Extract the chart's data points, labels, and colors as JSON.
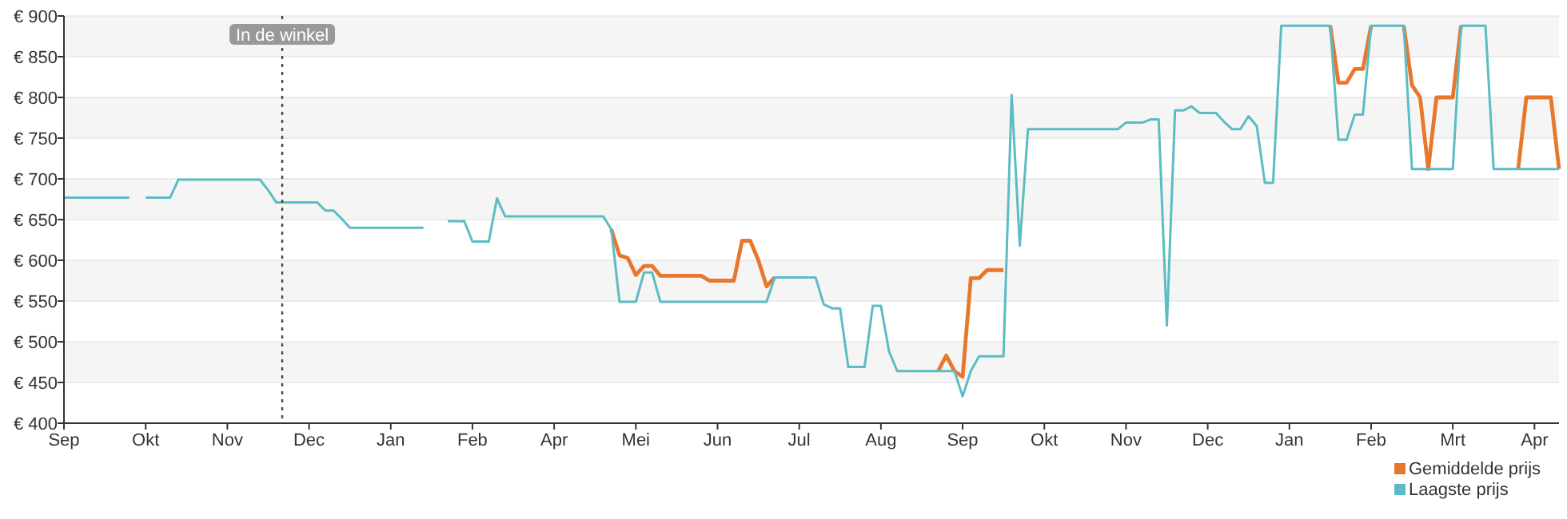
{
  "chart_data": {
    "type": "line",
    "categories": [
      "Sep",
      null,
      null,
      null,
      null,
      null,
      null,
      null,
      null,
      null,
      "Okt",
      null,
      null,
      null,
      null,
      null,
      null,
      null,
      null,
      null,
      "Nov",
      null,
      null,
      null,
      null,
      null,
      null,
      null,
      null,
      null,
      "Dec",
      null,
      null,
      null,
      null,
      null,
      null,
      null,
      null,
      null,
      "Jan",
      null,
      null,
      null,
      null,
      null,
      null,
      null,
      null,
      null,
      "Feb",
      null,
      null,
      null,
      null,
      null,
      null,
      null,
      null,
      null,
      "Apr",
      null,
      null,
      null,
      null,
      null,
      null,
      null,
      null,
      null,
      "Mei",
      null,
      null,
      null,
      null,
      null,
      null,
      null,
      null,
      null,
      "Jun",
      null,
      null,
      null,
      null,
      null,
      null,
      null,
      null,
      null,
      "Jul",
      null,
      null,
      null,
      null,
      null,
      null,
      null,
      null,
      null,
      "Aug",
      null,
      null,
      null,
      null,
      null,
      null,
      null,
      null,
      null,
      "Sep",
      null,
      null,
      null,
      null,
      null,
      null,
      null,
      null,
      null,
      "Okt",
      null,
      null,
      null,
      null,
      null,
      null,
      null,
      null,
      null,
      "Nov",
      null,
      null,
      null,
      null,
      null,
      null,
      null,
      null,
      null,
      "Dec",
      null,
      null,
      null,
      null,
      null,
      null,
      null,
      null,
      null,
      "Jan",
      null,
      null,
      null,
      null,
      null,
      null,
      null,
      null,
      null,
      "Feb",
      null,
      null,
      null,
      null,
      null,
      null,
      null,
      null,
      null,
      "Mrt",
      null,
      null,
      null,
      null,
      null,
      null,
      null,
      null,
      null,
      "Apr",
      null,
      null,
      null
    ],
    "ylim": [
      400,
      900
    ],
    "yticks": [
      {
        "value": 400,
        "label": "€ 400"
      },
      {
        "value": 450,
        "label": "€ 450"
      },
      {
        "value": 500,
        "label": "€ 500"
      },
      {
        "value": 550,
        "label": "€ 550"
      },
      {
        "value": 600,
        "label": "€ 600"
      },
      {
        "value": 650,
        "label": "€ 650"
      },
      {
        "value": 700,
        "label": "€ 700"
      },
      {
        "value": 750,
        "label": "€ 750"
      },
      {
        "value": 800,
        "label": "€ 800"
      },
      {
        "value": 850,
        "label": "€ 850"
      },
      {
        "value": 900,
        "label": "€ 900"
      }
    ],
    "grid": "y",
    "legend": "bottom right",
    "marker": "none",
    "line_style": "solid",
    "annotations": [
      "In de winkel"
    ],
    "series": [
      {
        "name": "Gemiddelde prijs",
        "color": "#e8772e",
        "values": [
          null,
          null,
          null,
          null,
          null,
          null,
          null,
          null,
          null,
          null,
          null,
          null,
          null,
          null,
          null,
          null,
          null,
          null,
          null,
          null,
          null,
          null,
          null,
          null,
          null,
          null,
          null,
          null,
          null,
          null,
          null,
          null,
          null,
          null,
          null,
          null,
          null,
          null,
          null,
          null,
          null,
          null,
          null,
          null,
          null,
          null,
          null,
          null,
          null,
          null,
          null,
          null,
          null,
          null,
          null,
          null,
          null,
          null,
          null,
          null,
          null,
          null,
          null,
          null,
          null,
          null,
          null,
          638,
          606,
          603,
          582,
          593,
          593,
          581,
          581,
          581,
          581,
          581,
          581,
          575,
          575,
          575,
          575,
          624,
          624,
          600,
          568,
          579,
          null,
          null,
          null,
          null,
          null,
          null,
          null,
          null,
          null,
          null,
          null,
          null,
          null,
          null,
          null,
          null,
          null,
          null,
          null,
          464,
          483,
          464,
          457,
          578,
          578,
          588,
          588,
          588,
          null,
          null,
          null,
          null,
          null,
          null,
          null,
          null,
          null,
          null,
          null,
          null,
          null,
          null,
          null,
          null,
          null,
          null,
          null,
          null,
          null,
          null,
          null,
          null,
          null,
          null,
          null,
          null,
          null,
          null,
          null,
          null,
          null,
          null,
          null,
          null,
          null,
          null,
          null,
          888,
          818,
          818,
          835,
          835,
          888,
          null,
          null,
          null,
          888,
          815,
          800,
          712,
          800,
          800,
          800,
          888,
          null,
          null,
          null,
          null,
          null,
          null,
          712,
          800,
          800,
          800,
          800,
          712
        ]
      },
      {
        "name": "Laagste prijs",
        "color": "#5bbcc4",
        "values": [
          677,
          677,
          677,
          677,
          677,
          677,
          677,
          677,
          677,
          null,
          677,
          677,
          677,
          677,
          699,
          699,
          699,
          699,
          699,
          699,
          699,
          699,
          699,
          699,
          699,
          686,
          671,
          671,
          671,
          671,
          671,
          671,
          661,
          661,
          651,
          640,
          640,
          640,
          640,
          640,
          640,
          640,
          640,
          640,
          640,
          null,
          null,
          648,
          648,
          648,
          623,
          623,
          623,
          676,
          654,
          654,
          654,
          654,
          654,
          654,
          654,
          654,
          654,
          654,
          654,
          654,
          654,
          638,
          549,
          549,
          549,
          585,
          585,
          549,
          549,
          549,
          549,
          549,
          549,
          549,
          549,
          549,
          549,
          549,
          549,
          549,
          549,
          579,
          579,
          579,
          579,
          579,
          579,
          546,
          541,
          541,
          469,
          469,
          469,
          544,
          544,
          488,
          464,
          464,
          464,
          464,
          464,
          464,
          464,
          464,
          433,
          464,
          482,
          482,
          482,
          482,
          803,
          618,
          761,
          761,
          761,
          761,
          761,
          761,
          761,
          761,
          761,
          761,
          761,
          761,
          769,
          769,
          769,
          773,
          773,
          520,
          784,
          784,
          789,
          781,
          781,
          781,
          770,
          761,
          761,
          777,
          765,
          695,
          695,
          888,
          888,
          888,
          888,
          888,
          888,
          888,
          748,
          748,
          779,
          779,
          888,
          888,
          888,
          888,
          888,
          712,
          712,
          712,
          712,
          712,
          712,
          888,
          888,
          888,
          888,
          712,
          712,
          712,
          712,
          712,
          712,
          712,
          712,
          712
        ]
      }
    ]
  }
}
